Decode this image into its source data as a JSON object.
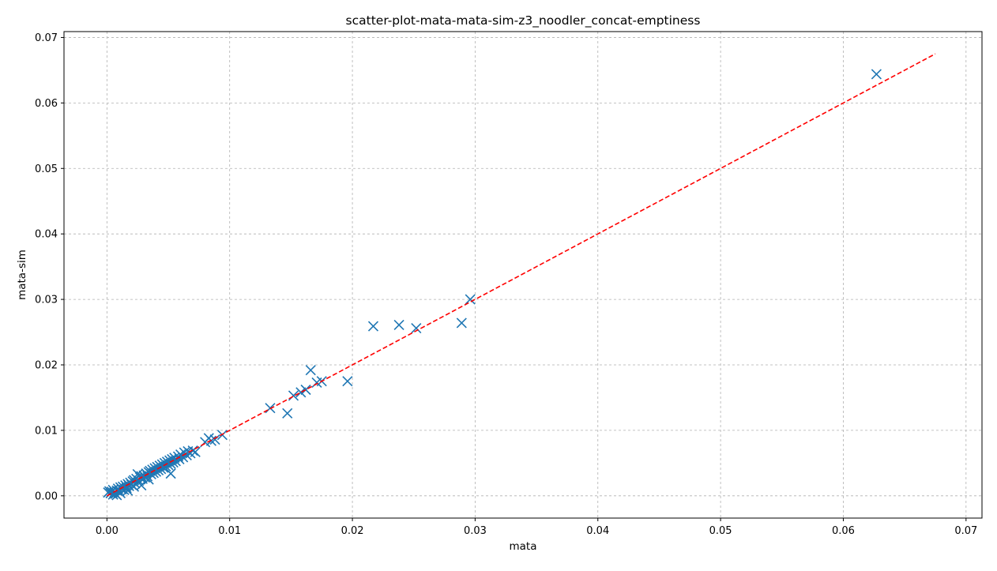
{
  "chart_data": {
    "type": "scatter",
    "title": "scatter-plot-mata-mata-sim-z3_noodler_concat-emptiness",
    "xlabel": "mata",
    "ylabel": "mata-sim",
    "xlim": [
      -0.0035,
      0.0713
    ],
    "ylim": [
      -0.0034,
      0.0709
    ],
    "xticks": [
      0.0,
      0.01,
      0.02,
      0.03,
      0.04,
      0.05,
      0.06,
      0.07
    ],
    "xtick_labels": [
      "0.00",
      "0.01",
      "0.02",
      "0.03",
      "0.04",
      "0.05",
      "0.06",
      "0.07"
    ],
    "yticks": [
      0.0,
      0.01,
      0.02,
      0.03,
      0.04,
      0.05,
      0.06,
      0.07
    ],
    "ytick_labels": [
      "0.00",
      "0.01",
      "0.02",
      "0.03",
      "0.04",
      "0.05",
      "0.06",
      "0.07"
    ],
    "grid": true,
    "marker": "x",
    "series_color": "#1f77b4",
    "reference_line": {
      "style": "dashed",
      "color": "#ff0000",
      "from": [
        0.0,
        0.0
      ],
      "to": [
        0.0675,
        0.0675
      ]
    },
    "points": [
      [
        0.0001,
        0.0005
      ],
      [
        0.0002,
        0.0007
      ],
      [
        0.0003,
        0.0004
      ],
      [
        0.0004,
        0.0006
      ],
      [
        0.0005,
        0.0002
      ],
      [
        0.0005,
        0.0009
      ],
      [
        0.0006,
        0.0005
      ],
      [
        0.0007,
        0.0003
      ],
      [
        0.0008,
        0.0008
      ],
      [
        0.0008,
        0.0001
      ],
      [
        0.0009,
        0.0011
      ],
      [
        0.001,
        0.0007
      ],
      [
        0.0011,
        0.0013
      ],
      [
        0.0011,
        0.0004
      ],
      [
        0.0012,
        0.001
      ],
      [
        0.0013,
        0.0014
      ],
      [
        0.0014,
        0.0009
      ],
      [
        0.0015,
        0.0016
      ],
      [
        0.0016,
        0.0012
      ],
      [
        0.0017,
        0.0018
      ],
      [
        0.0017,
        0.0008
      ],
      [
        0.0018,
        0.0015
      ],
      [
        0.0019,
        0.002
      ],
      [
        0.002,
        0.0017
      ],
      [
        0.0021,
        0.0022
      ],
      [
        0.0022,
        0.0014
      ],
      [
        0.0022,
        0.0024
      ],
      [
        0.0023,
        0.0019
      ],
      [
        0.0024,
        0.0026
      ],
      [
        0.0025,
        0.0033
      ],
      [
        0.0026,
        0.0023
      ],
      [
        0.0027,
        0.0028
      ],
      [
        0.0028,
        0.0016
      ],
      [
        0.0028,
        0.003
      ],
      [
        0.0029,
        0.0026
      ],
      [
        0.003,
        0.0031
      ],
      [
        0.0031,
        0.0028
      ],
      [
        0.0032,
        0.0034
      ],
      [
        0.0033,
        0.003
      ],
      [
        0.0034,
        0.0036
      ],
      [
        0.0034,
        0.0025
      ],
      [
        0.0035,
        0.0038
      ],
      [
        0.0036,
        0.0033
      ],
      [
        0.0037,
        0.004
      ],
      [
        0.0038,
        0.0035
      ],
      [
        0.0039,
        0.0042
      ],
      [
        0.004,
        0.0037
      ],
      [
        0.0041,
        0.0044
      ],
      [
        0.0042,
        0.0039
      ],
      [
        0.0043,
        0.0046
      ],
      [
        0.0044,
        0.0041
      ],
      [
        0.0045,
        0.0048
      ],
      [
        0.0046,
        0.0043
      ],
      [
        0.0047,
        0.005
      ],
      [
        0.0048,
        0.0045
      ],
      [
        0.0049,
        0.0052
      ],
      [
        0.005,
        0.0047
      ],
      [
        0.0051,
        0.0054
      ],
      [
        0.0052,
        0.0049
      ],
      [
        0.0053,
        0.0056
      ],
      [
        0.0052,
        0.0034
      ],
      [
        0.0054,
        0.0051
      ],
      [
        0.0055,
        0.0058
      ],
      [
        0.0056,
        0.0053
      ],
      [
        0.0058,
        0.006
      ],
      [
        0.0059,
        0.0056
      ],
      [
        0.006,
        0.0063
      ],
      [
        0.0062,
        0.0059
      ],
      [
        0.0063,
        0.0066
      ],
      [
        0.0065,
        0.0062
      ],
      [
        0.0066,
        0.0068
      ],
      [
        0.0068,
        0.0065
      ],
      [
        0.007,
        0.0069
      ],
      [
        0.0072,
        0.0067
      ],
      [
        0.008,
        0.0082
      ],
      [
        0.0083,
        0.0088
      ],
      [
        0.0085,
        0.0084
      ],
      [
        0.0088,
        0.0086
      ],
      [
        0.0094,
        0.0093
      ],
      [
        0.0133,
        0.0134
      ],
      [
        0.0147,
        0.0126
      ],
      [
        0.0152,
        0.0153
      ],
      [
        0.0158,
        0.0158
      ],
      [
        0.0162,
        0.0162
      ],
      [
        0.0166,
        0.0192
      ],
      [
        0.0171,
        0.0173
      ],
      [
        0.0175,
        0.0175
      ],
      [
        0.0196,
        0.0175
      ],
      [
        0.0217,
        0.0259
      ],
      [
        0.0238,
        0.0261
      ],
      [
        0.0252,
        0.0256
      ],
      [
        0.0289,
        0.0264
      ],
      [
        0.0296,
        0.03
      ],
      [
        0.0627,
        0.0644
      ]
    ]
  }
}
